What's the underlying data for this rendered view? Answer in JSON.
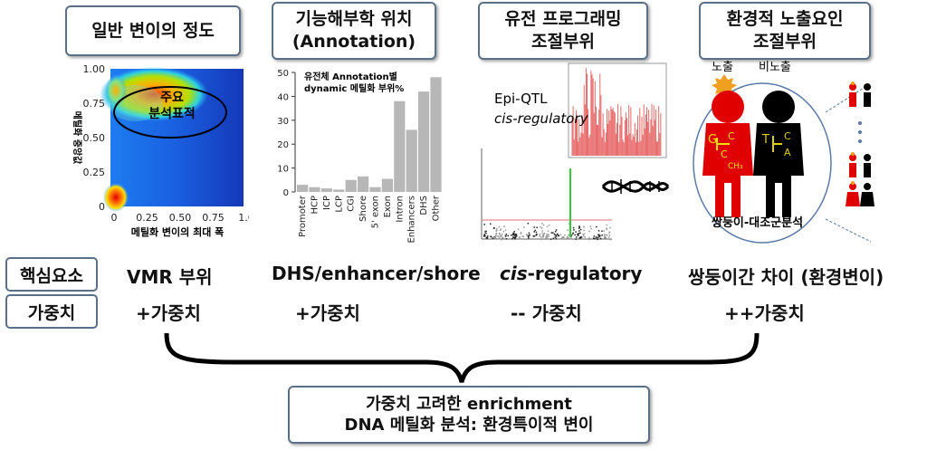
{
  "headers": [
    "일반 변이의 정도",
    "기능해부학 위치\n(Annotation)",
    "유전 프로그래밍\n조절부위",
    "환경적 노출요인\n조절부위"
  ],
  "heatmap": {
    "xlabel": "메틸화 변이의 최대 폭",
    "ylabel": "메틸화 중앙값",
    "xticks": [
      "0",
      "0.25",
      "0.50",
      "0.75",
      "1.0"
    ],
    "yticks": [
      "1.00",
      "0.75",
      "0.50",
      "0.25",
      "0"
    ],
    "annotation": "주요\n분석표적"
  },
  "chart_data": {
    "type": "bar",
    "title": "유전체 Annotation별\ndynamic 메틸화 부위%",
    "categories": [
      "Promoter",
      "HCP",
      "ICP",
      "LCP",
      "CGI",
      "Shore",
      "5' exon",
      "Exon",
      "Intron",
      "Enhancers",
      "DHS",
      "Other"
    ],
    "values": [
      3,
      2,
      1.5,
      1,
      5,
      6.5,
      2,
      5.5,
      38,
      26,
      42,
      48
    ],
    "ylim": [
      0,
      50
    ],
    "yticks": [
      0,
      10,
      20,
      30,
      40,
      50
    ]
  },
  "qtl": {
    "label1": "Epi-QTL",
    "label2": "cis-regulatory"
  },
  "twins": {
    "label_exposed": "노출",
    "label_unexposed": "비노출",
    "caption": "쌍둥이-대조군분석"
  },
  "rows": {
    "core_label": "핵심요소",
    "weight_label": "가중치",
    "core": [
      "VMR 부위",
      "DHS/enhancer/shore",
      "cis",
      "-regulatory",
      "쌍둥이간 차이 (환경변이)"
    ],
    "weights": [
      "+가중치",
      "+가중치",
      "-- 가중치",
      "++가중치"
    ]
  },
  "bottom": {
    "line1": "가중치 고려한 enrichment",
    "line2": "DNA 메틸화 분석: 환경특이적 변이"
  }
}
